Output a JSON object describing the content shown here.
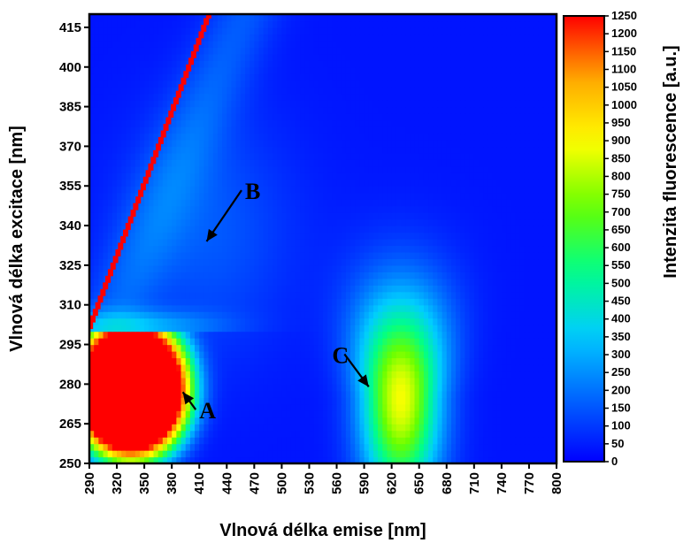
{
  "chart_data": {
    "type": "heatmap",
    "title": "",
    "xlabel": "Vlnová délka emise [nm]",
    "ylabel": "Vlnová délka excitace [nm]",
    "colorbar_label": "Intenzita fluorescence [a.u.]",
    "xlim": [
      290,
      800
    ],
    "ylim": [
      250,
      420
    ],
    "x_ticks": [
      290,
      320,
      350,
      380,
      410,
      440,
      470,
      500,
      530,
      560,
      590,
      620,
      650,
      680,
      710,
      740,
      770,
      800
    ],
    "y_ticks": [
      250,
      265,
      280,
      295,
      310,
      325,
      340,
      355,
      370,
      385,
      400,
      415
    ],
    "colorbar_range": [
      0,
      1250
    ],
    "colorbar_ticks": [
      0,
      50,
      100,
      150,
      200,
      250,
      300,
      350,
      400,
      450,
      500,
      550,
      600,
      650,
      700,
      750,
      800,
      850,
      900,
      950,
      1000,
      1050,
      1100,
      1150,
      1200,
      1250
    ],
    "colormap": [
      "#0000ff",
      "#0066ff",
      "#00ccff",
      "#00ff88",
      "#66ff00",
      "#ffff00",
      "#ffaa00",
      "#ff0000"
    ],
    "features": [
      {
        "name": "scatter-line",
        "description_level": 1250
      },
      {
        "name": "peak-A",
        "x": 335,
        "y": 278,
        "level": 1250
      },
      {
        "name": "peak-B",
        "x": 420,
        "y": 338,
        "level": 120
      },
      {
        "name": "peak-C",
        "x": 630,
        "y": 275,
        "level": 850
      }
    ],
    "annotations": [
      {
        "label": "A",
        "text_x": 410,
        "text_y": 267,
        "arrow_to_x": 392,
        "arrow_to_y": 277
      },
      {
        "label": "B",
        "text_x": 460,
        "text_y": 350,
        "arrow_to_x": 418,
        "arrow_to_y": 334
      },
      {
        "label": "C",
        "text_x": 555,
        "text_y": 288,
        "arrow_to_x": 595,
        "arrow_to_y": 279
      }
    ],
    "grid": false
  }
}
